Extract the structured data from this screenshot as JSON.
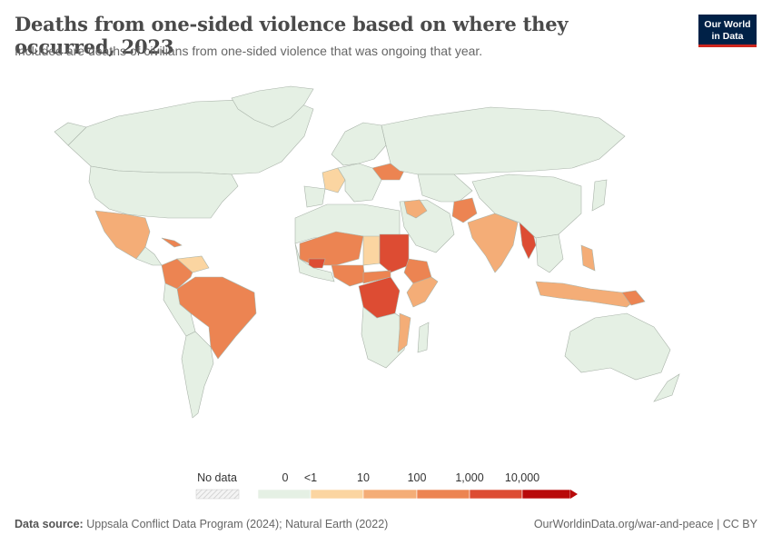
{
  "header": {
    "title": "Deaths from one-sided violence based on where they occurred, 2023",
    "subtitle": "Included are deaths of civilians from one-sided violence that was ongoing that year."
  },
  "logo": {
    "line1": "Our World",
    "line2": "in Data"
  },
  "legend": {
    "no_data_label": "No data",
    "bins": [
      {
        "label": "0",
        "color": "#e5f0e4"
      },
      {
        "label": "<1",
        "color": "#fbd5a1"
      },
      {
        "label": "10",
        "color": "#f4ad77"
      },
      {
        "label": "100",
        "color": "#ec8452"
      },
      {
        "label": "1,000",
        "color": "#dd4c33"
      },
      {
        "label": "10,000",
        "color": "#b80a0a"
      }
    ]
  },
  "colors": {
    "zero": "#e5f0e4",
    "lt1": "#fbd5a1",
    "ten": "#f4ad77",
    "hundred": "#ec8452",
    "thousand": "#dd4c33",
    "tenthousand": "#b80a0a",
    "border": "#a9b3a9",
    "logo_bg": "#002147",
    "logo_accent": "#ce261e"
  },
  "footer": {
    "source_label": "Data source:",
    "source_text": "Uppsala Conflict Data Program (2024); Natural Earth (2022)",
    "url": "OurWorldinData.org/war-and-peace | CC BY"
  }
}
